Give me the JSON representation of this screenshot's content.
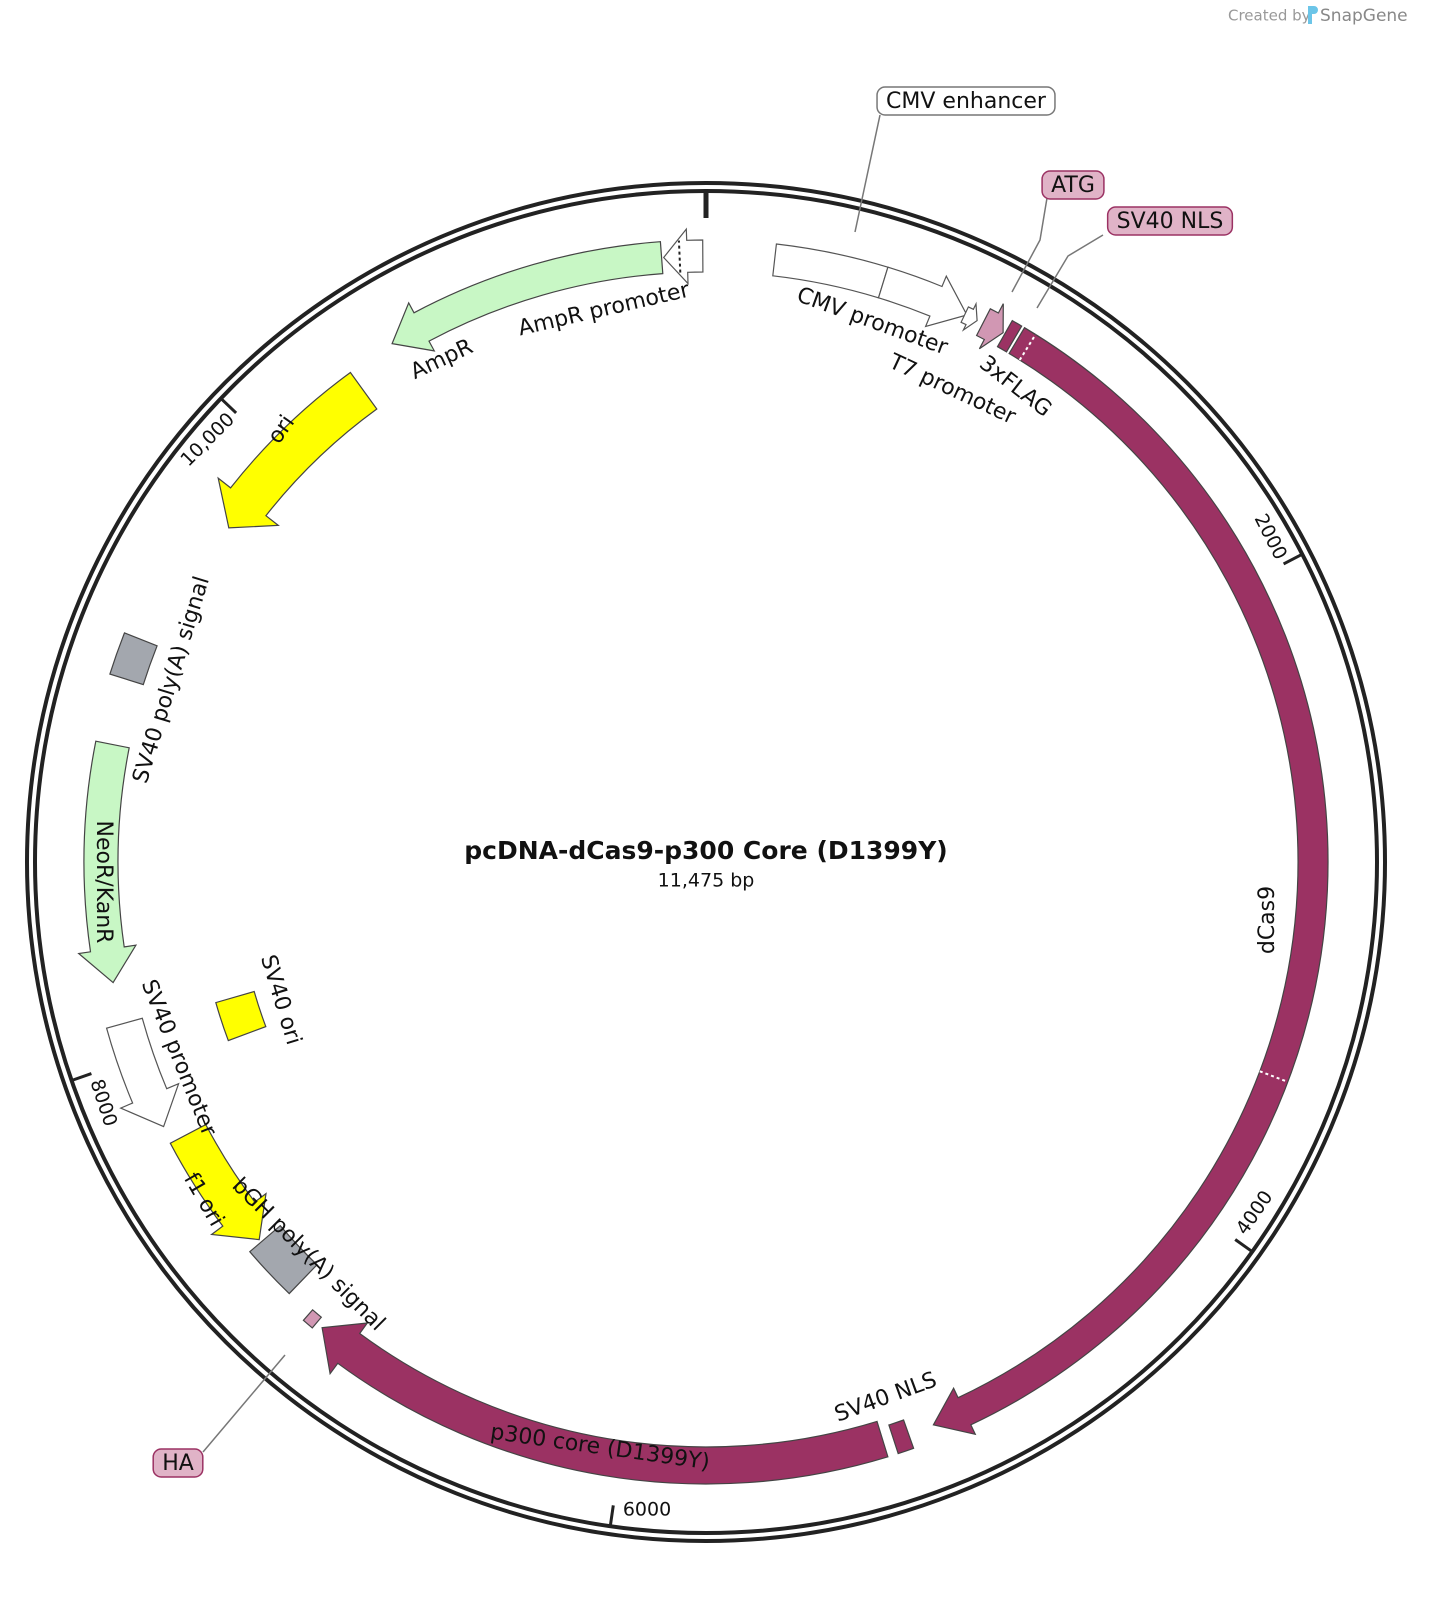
{
  "header": {
    "created_by": "Created by",
    "brand": "SnapGene"
  },
  "map": {
    "title": "pcDNA-dCas9-p300 Core (D1399Y)",
    "length": "11,475 bp",
    "ticks": [
      "2000",
      "4000",
      "6000",
      "8000",
      "10,000"
    ],
    "features": [
      {
        "label": "CMV enhancer"
      },
      {
        "label": "CMV promoter"
      },
      {
        "label": "T7 promoter"
      },
      {
        "label": "ATG"
      },
      {
        "label": "3xFLAG"
      },
      {
        "label": "SV40 NLS"
      },
      {
        "label": "dCas9"
      },
      {
        "label": "SV40 NLS"
      },
      {
        "label": "p300 core (D1399Y)"
      },
      {
        "label": "HA"
      },
      {
        "label": "bGH poly(A) signal"
      },
      {
        "label": "f1 ori"
      },
      {
        "label": "SV40 promoter"
      },
      {
        "label": "SV40 ori"
      },
      {
        "label": "NeoR/KanR"
      },
      {
        "label": "SV40 poly(A) signal"
      },
      {
        "label": "ori"
      },
      {
        "label": "AmpR"
      },
      {
        "label": "AmpR promoter"
      }
    ]
  }
}
